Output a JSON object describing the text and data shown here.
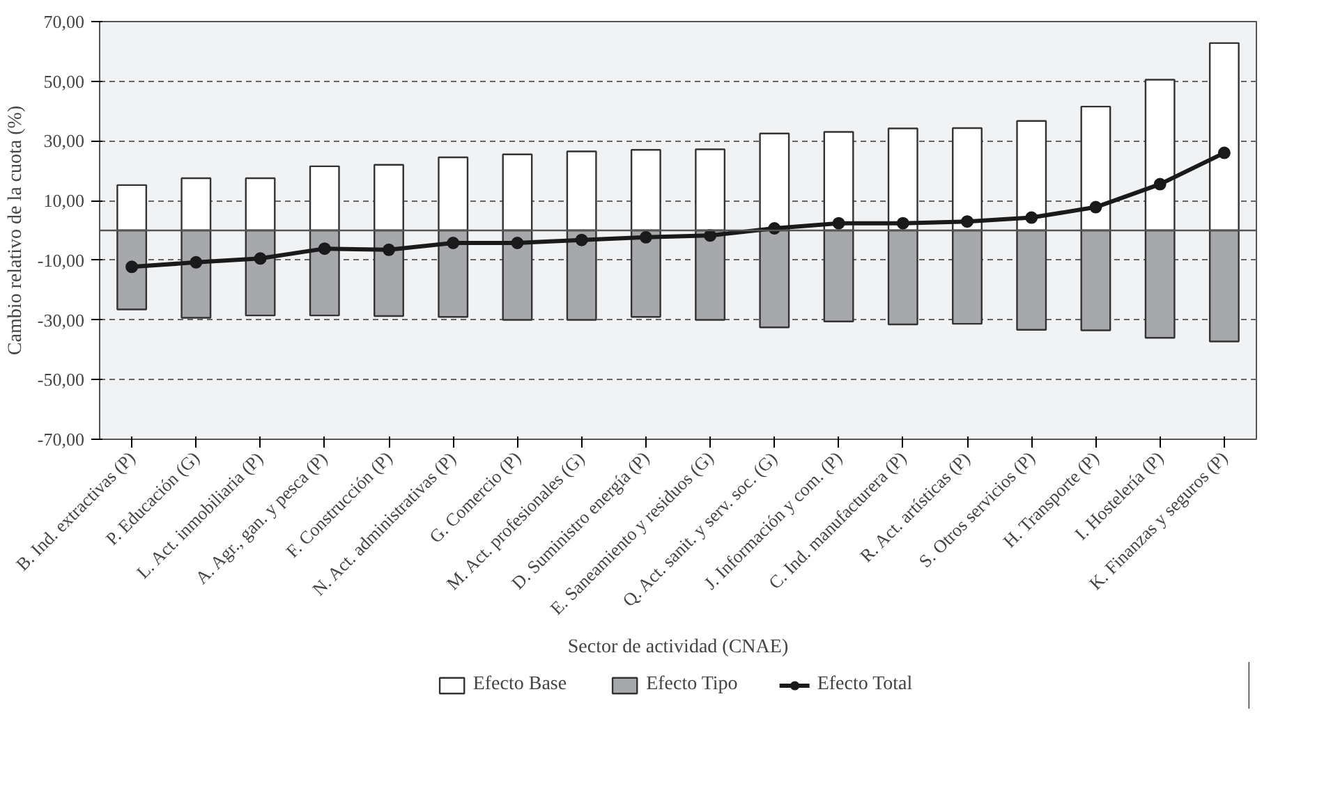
{
  "chart_data": {
    "type": "bar",
    "xlabel": "Sector de actividad (CNAE)",
    "ylabel": "Cambio relativo de la cuota (%)",
    "categories": [
      "B. Ind. extractivas (P)",
      "P. Educación (G)",
      "L. Act. inmobiliaria (P)",
      "A. Agr., gan. y pesca (P)",
      "F. Construcción (P)",
      "N. Act. administrativas (P)",
      "G. Comercio (P)",
      "M. Act. profesionales (G)",
      "D. Suministro energía (P)",
      "E. Saneamiento y residuos (G)",
      "Q. Act. sanit. y serv. soc. (G)",
      "J. Información y com. (P)",
      "C. Ind. manufacturera (P)",
      "R. Act. artísticas (P)",
      "S. Otros servicios (P)",
      "H. Transporte (P)",
      "I. Hostelería (P)",
      "K. Finanzas y seguros (P)"
    ],
    "series": [
      {
        "name": "Efecto Base",
        "color": "#ffffff",
        "values": [
          15.2,
          17.5,
          17.5,
          21.5,
          22,
          24.5,
          25.5,
          26.5,
          27,
          27.2,
          32.5,
          33,
          34.2,
          34.3,
          36.7,
          41.5,
          50.5,
          62.8
        ]
      },
      {
        "name": "Efecto Tipo",
        "color": "#a7a8ab",
        "values": [
          -26.5,
          -29.3,
          -28.5,
          -28.5,
          -28.7,
          -29,
          -30,
          -30,
          -29,
          -30,
          -32.5,
          -30.5,
          -31.5,
          -31.3,
          -33.3,
          -33.5,
          -36,
          -37.2
        ]
      },
      {
        "name": "Efecto Total",
        "type": "line",
        "color": "#1a1a1a",
        "values": [
          -12.2,
          -10.7,
          -9.4,
          -6.1,
          -6.5,
          -4.2,
          -4.2,
          -3.2,
          -2.3,
          -1.7,
          0.7,
          2.4,
          2.4,
          3,
          4.3,
          7.8,
          15.5,
          26
        ]
      }
    ],
    "ylim": [
      -70,
      70
    ],
    "yticks": [
      {
        "value": 70,
        "label": "70,00"
      },
      {
        "value": 50,
        "label": "50,00"
      },
      {
        "value": 30,
        "label": "30,00"
      },
      {
        "value": 10,
        "label": "10,00"
      },
      {
        "value": -10,
        "label": "-10,00"
      },
      {
        "value": -30,
        "label": "-30,00"
      },
      {
        "value": -50,
        "label": "-50,00"
      },
      {
        "value": -70,
        "label": "-70,00"
      }
    ],
    "ref_lines": [
      {
        "axis": "y",
        "value": 0,
        "color": "#555555"
      }
    ],
    "stacked": true,
    "grid": "y",
    "legend": "bottom",
    "marker": "circle",
    "line_style": "solid"
  }
}
